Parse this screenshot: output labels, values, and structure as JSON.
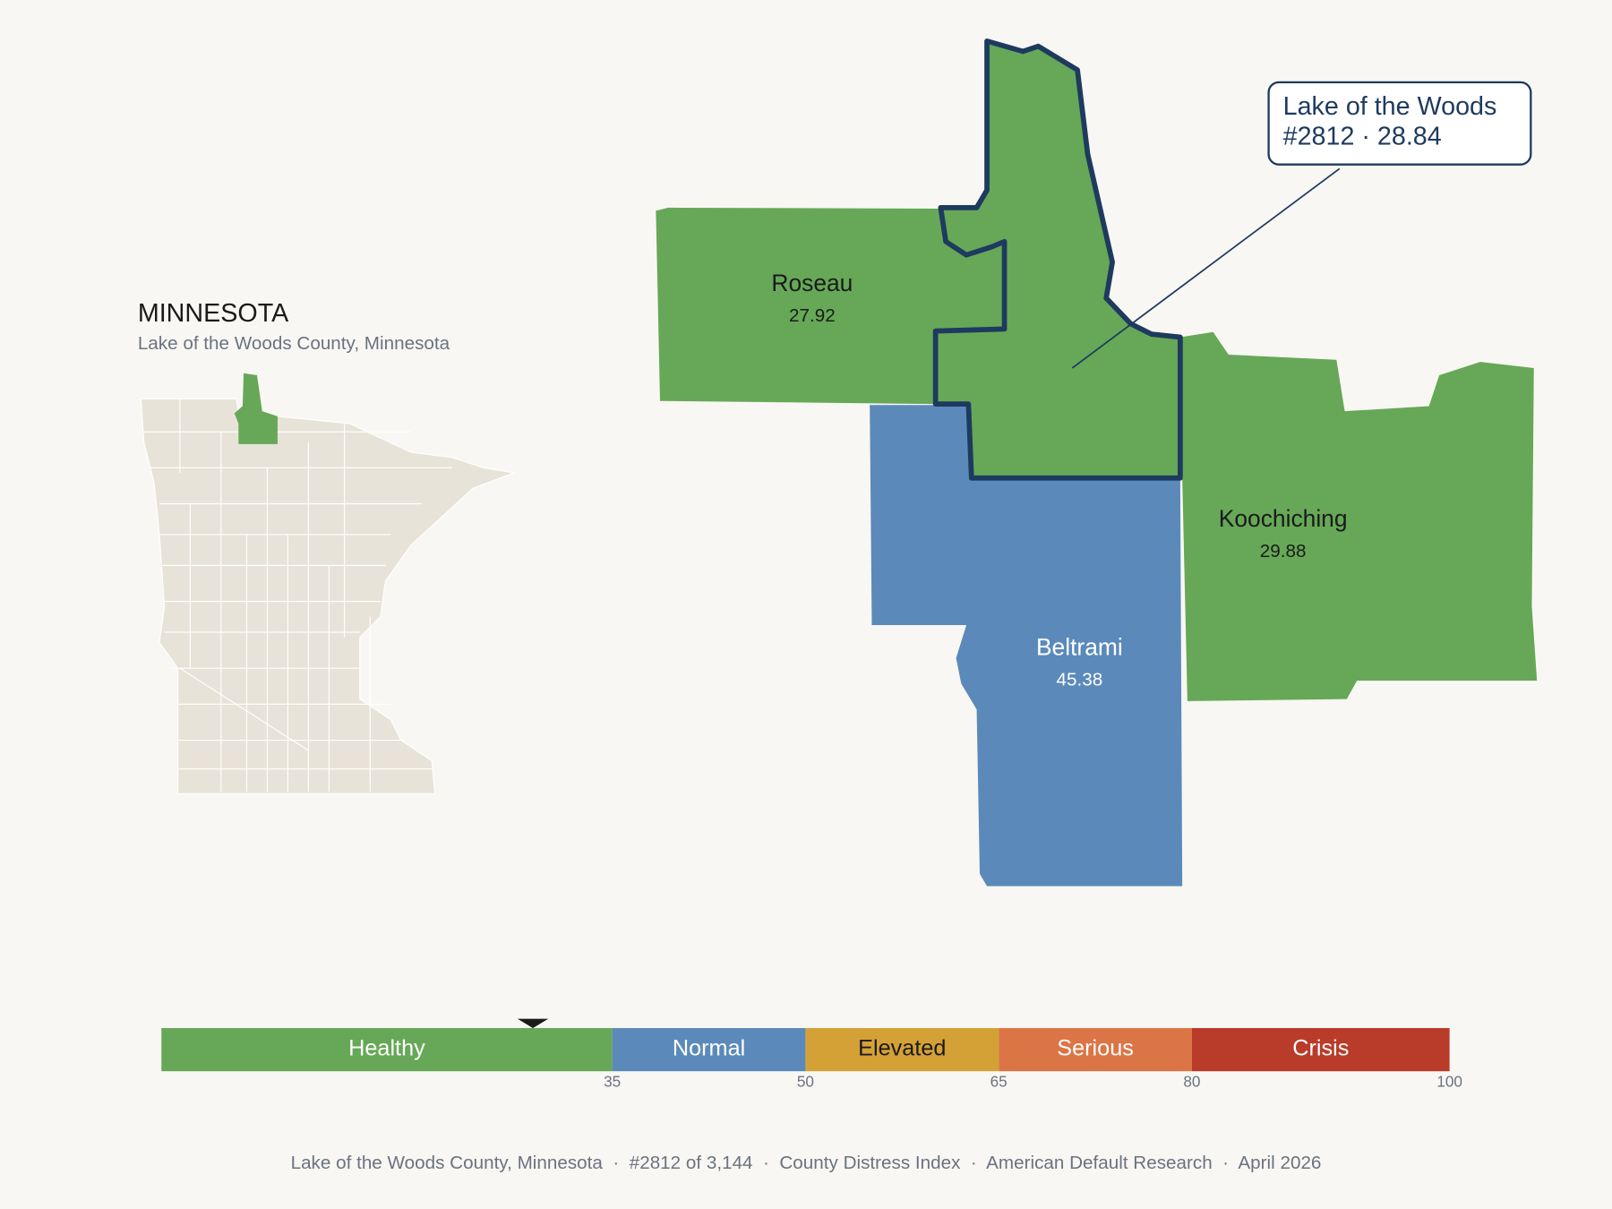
{
  "state": {
    "title": "MINNESOTA",
    "subtitle": "Lake of the Woods County, Minnesota"
  },
  "counties": [
    {
      "name": "Roseau",
      "score": 27.92,
      "color": "#66a857"
    },
    {
      "name": "Beltrami",
      "score": 45.38,
      "color": "#5b8aba"
    },
    {
      "name": "Koochiching",
      "score": 29.88,
      "color": "#66a857"
    },
    {
      "name": "Lake of the Woods",
      "score": 28.84,
      "color": "#66a857"
    }
  ],
  "callout": [
    "Lake of the Woods",
    "#2812 · 28.84"
  ],
  "legend": {
    "lim": [
      0,
      100
    ],
    "marker_value": 28.84,
    "bands": [
      {
        "label": "Healthy",
        "color": "#66a857"
      },
      {
        "label": "Normal",
        "color": "#5b8aba"
      },
      {
        "label": "Elevated",
        "color": "#d4a136"
      },
      {
        "label": "Serious",
        "color": "#dc7545"
      },
      {
        "label": "Crisis",
        "color": "#b93b2a"
      }
    ],
    "breaks": [
      35,
      50,
      65,
      80,
      100
    ]
  },
  "footer": "Lake of the Woods County, Minnesota  ·  #2812 of 3,144  ·  County Distress Index  ·  American Default Research  ·  April 2026"
}
